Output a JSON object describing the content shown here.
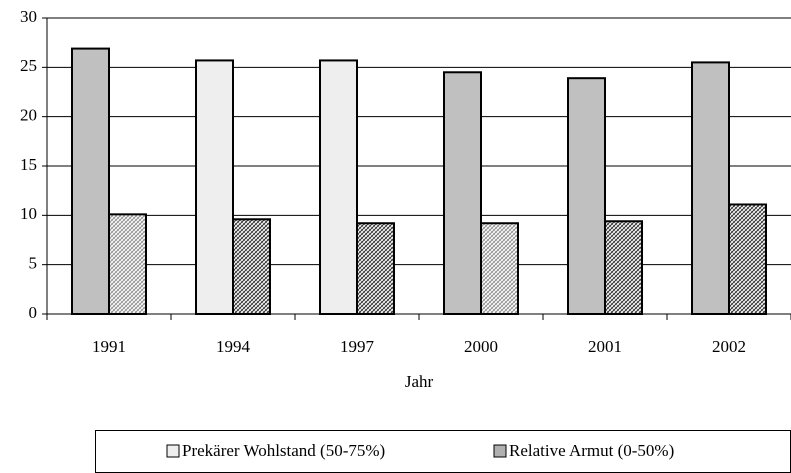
{
  "chart_data": {
    "type": "bar",
    "x_label": "Jahr",
    "categories": [
      "1991",
      "1994",
      "1997",
      "2000",
      "2001",
      "2002"
    ],
    "series": [
      {
        "name": "Prekärer Wohlstand (50-75%)",
        "color": "#eeeeee",
        "hatch": false,
        "colors": [
          "#c0c0c0",
          "#eeeeee",
          "#eeeeee",
          "#c0c0c0",
          "#c0c0c0",
          "#c0c0c0"
        ],
        "values": [
          26.9,
          25.7,
          25.7,
          24.5,
          23.9,
          25.5
        ]
      },
      {
        "name": "Relative Armut (0-50%)",
        "color": "#b0b0b0",
        "hatch": true,
        "colors": [
          "#909090",
          "#303030",
          "#303030",
          "#909090",
          "#303030",
          "#303030"
        ],
        "values": [
          10.1,
          9.6,
          9.2,
          9.2,
          9.4,
          11.1
        ]
      }
    ],
    "ylim": [
      0,
      30
    ],
    "yticks": [
      0,
      5,
      10,
      15,
      20,
      25,
      30
    ],
    "grid": true,
    "legend": "bottom"
  }
}
